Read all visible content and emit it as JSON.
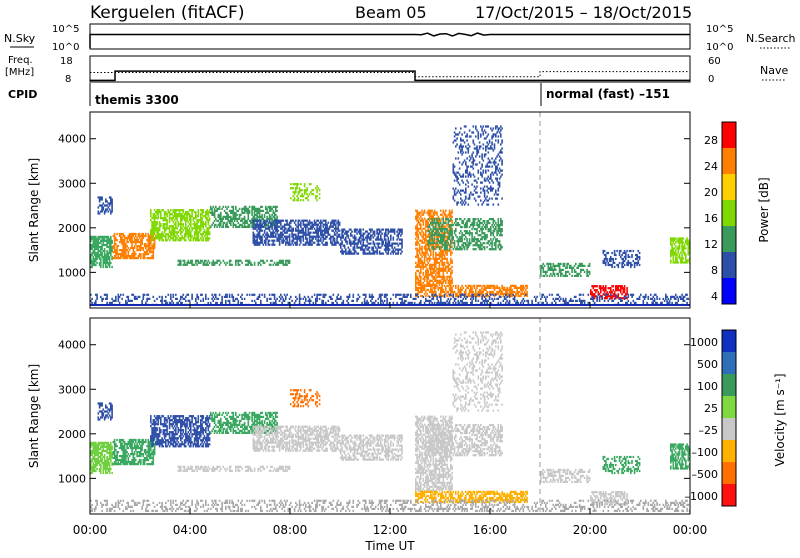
{
  "header": {
    "station": "Kerguelen (fitACF)",
    "beam": "Beam 05",
    "date_range": "17/Oct/2015 – 18/Oct/2015"
  },
  "top_panels": {
    "nsky_label": "N.Sky",
    "nsearch_label": "N.Search",
    "nsky_ticks": [
      "10^5",
      "10^0"
    ],
    "nsearch_ticks": [
      "10^5",
      "10^0"
    ],
    "freq_label_line1": "Freq.",
    "freq_label_line2": "[MHz]",
    "freq_ticks": [
      "18",
      "8"
    ],
    "nave_label": "Nave",
    "nave_ticks": [
      "60",
      "0"
    ],
    "cpid_label": "CPID",
    "cpid_segments": [
      {
        "label": "themis 3300",
        "start_hour": 0
      },
      {
        "label": "normal (fast) –151",
        "start_hour": 18
      }
    ],
    "freq_steps": [
      [
        0,
        8.6
      ],
      [
        1,
        8.6
      ],
      [
        1,
        12.2
      ],
      [
        13,
        12.2
      ],
      [
        13,
        8.6
      ],
      [
        24,
        8.6
      ]
    ],
    "nave_steps": [
      [
        0,
        22
      ],
      [
        13,
        22
      ],
      [
        13,
        12
      ],
      [
        18,
        12
      ],
      [
        18,
        24
      ],
      [
        24,
        24
      ]
    ]
  },
  "chart_data": [
    {
      "type": "heatmap",
      "ylabel": "Slant Range [km]",
      "y_ticks": [
        "4000",
        "3000",
        "2000",
        "1000"
      ],
      "y_tick_values": [
        4000,
        3000,
        2000,
        1000
      ],
      "ylim": [
        200,
        4600
      ],
      "colorbar_label": "Power [dB]",
      "colorbar_ticks": [
        "28",
        "24",
        "20",
        "16",
        "12",
        "8",
        "4"
      ],
      "colorbar_colors": [
        "#ff0000",
        "#ff7f00",
        "#ffd000",
        "#7fd800",
        "#3a9a5c",
        "#2e4fa8",
        "#0000ff"
      ]
    },
    {
      "type": "heatmap",
      "ylabel": "Slant Range [km]",
      "xlabel": "Time UT",
      "x_ticks": [
        "00:00",
        "04:00",
        "08:00",
        "12:00",
        "16:00",
        "20:00",
        "00:00"
      ],
      "x_tick_hours": [
        0,
        4,
        8,
        12,
        16,
        20,
        24
      ],
      "xlim": [
        0,
        24
      ],
      "y_ticks": [
        "4000",
        "3000",
        "2000",
        "1000"
      ],
      "y_tick_values": [
        4000,
        3000,
        2000,
        1000
      ],
      "ylim": [
        200,
        4600
      ],
      "colorbar_label": "Velocity [m s⁻¹]",
      "colorbar_ticks": [
        "1000",
        "500",
        "100",
        "25",
        "–25",
        "–100",
        "–500",
        "–1000"
      ],
      "colorbar_colors": [
        "#1030c0",
        "#2e6fb8",
        "#3a9a5c",
        "#7fd840",
        "#c8c8c8",
        "#ffb000",
        "#ff7000",
        "#ff1010"
      ],
      "cpid_change_hour": 18
    }
  ],
  "scatter_features": [
    {
      "t0": 0.0,
      "t1": 0.9,
      "r0": 1100,
      "r1": 1800,
      "dens": 0.75,
      "p": "#3aa860",
      "v": "#70d040"
    },
    {
      "t0": 0.3,
      "t1": 0.9,
      "r0": 2300,
      "r1": 2700,
      "dens": 0.55,
      "p": "#2e4fa8",
      "v": "#2e4fa8"
    },
    {
      "t0": 0.9,
      "t1": 2.6,
      "r0": 1300,
      "r1": 1900,
      "dens": 0.65,
      "p": "#ff7f00",
      "v": "#3aa860"
    },
    {
      "t0": 2.4,
      "t1": 4.8,
      "r0": 1700,
      "r1": 2400,
      "dens": 0.65,
      "p": "#7fd800",
      "v": "#2e4fa8"
    },
    {
      "t0": 4.8,
      "t1": 7.5,
      "r0": 2000,
      "r1": 2500,
      "dens": 0.6,
      "p": "#3a9a5c",
      "v": "#3aa860"
    },
    {
      "t0": 3.5,
      "t1": 8.0,
      "r0": 1150,
      "r1": 1300,
      "dens": 0.55,
      "p": "#3a9a5c",
      "v": "#c8c8c8"
    },
    {
      "t0": 6.5,
      "t1": 10.0,
      "r0": 1600,
      "r1": 2200,
      "dens": 0.6,
      "p": "#2e4fa8",
      "v": "#c8c8c8"
    },
    {
      "t0": 10.0,
      "t1": 12.5,
      "r0": 1400,
      "r1": 2000,
      "dens": 0.55,
      "p": "#2e4fa8",
      "v": "#c8c8c8"
    },
    {
      "t0": 8.0,
      "t1": 9.2,
      "r0": 2600,
      "r1": 3000,
      "dens": 0.35,
      "p": "#7fd800",
      "v": "#ff7000"
    },
    {
      "t0": 13.0,
      "t1": 14.5,
      "r0": 700,
      "r1": 2400,
      "dens": 0.6,
      "p": "#ff7f00",
      "v": "#c8c8c8"
    },
    {
      "t0": 13.5,
      "t1": 16.5,
      "r0": 1500,
      "r1": 2200,
      "dens": 0.5,
      "p": "#3a9a5c",
      "v": "#c8c8c8"
    },
    {
      "t0": 13.0,
      "t1": 17.5,
      "r0": 450,
      "r1": 700,
      "dens": 0.6,
      "p": "#ff7f00",
      "v": "#ffb000"
    },
    {
      "t0": 14.5,
      "t1": 16.5,
      "r0": 2500,
      "r1": 4300,
      "dens": 0.25,
      "p": "#2e4fa8",
      "v": "#c8c8c8"
    },
    {
      "t0": 18.0,
      "t1": 20.0,
      "r0": 900,
      "r1": 1200,
      "dens": 0.5,
      "p": "#3a9a5c",
      "v": "#c8c8c8"
    },
    {
      "t0": 20.0,
      "t1": 21.5,
      "r0": 400,
      "r1": 700,
      "dens": 0.6,
      "p": "#ff0000",
      "v": "#c8c8c8"
    },
    {
      "t0": 20.5,
      "t1": 22.0,
      "r0": 1100,
      "r1": 1500,
      "dens": 0.4,
      "p": "#2e4fa8",
      "v": "#3aa860"
    },
    {
      "t0": 23.2,
      "t1": 24.0,
      "r0": 1200,
      "r1": 1800,
      "dens": 0.6,
      "p": "#7fd800",
      "v": "#3aa860"
    },
    {
      "t0": 0.0,
      "t1": 24.0,
      "r0": 250,
      "r1": 500,
      "dens": 0.3,
      "p": "#2e4fa8",
      "v": "#a8a8a8"
    }
  ]
}
